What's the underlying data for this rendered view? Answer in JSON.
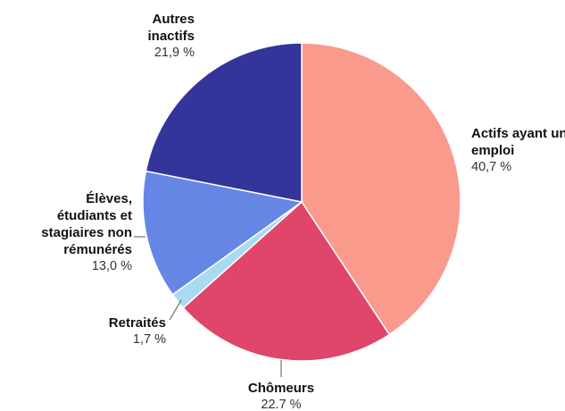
{
  "chart_data": {
    "type": "pie",
    "categories": [
      "Actifs ayant un emploi",
      "Chômeurs",
      "Retraités",
      "Élèves, étudiants et stagiaires non rémunérés",
      "Autres inactifs"
    ],
    "values": [
      40.7,
      22.7,
      1.7,
      13.0,
      21.9
    ],
    "value_labels": [
      "40,7 %",
      "22.7 %",
      "1,7 %",
      "13,0 %",
      "21,9 %"
    ],
    "colors": [
      "#f99a8d",
      "#e0456a",
      "#a8dbf2",
      "#6686e6",
      "#33359a"
    ]
  }
}
